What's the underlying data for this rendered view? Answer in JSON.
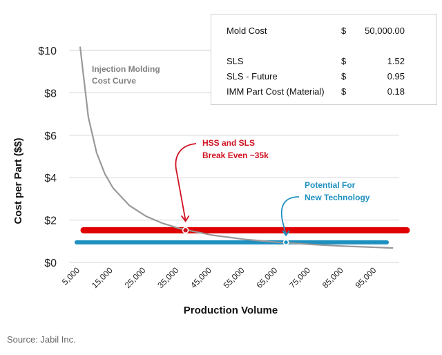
{
  "chart_data": {
    "type": "line",
    "xlabel": "Production Volume",
    "ylabel": "Cost per Part ($$)",
    "ylim": [
      0,
      10
    ],
    "yticks": [
      "$0",
      "$2",
      "$4",
      "$6",
      "$8",
      "$10"
    ],
    "ytick_values": [
      0,
      2,
      4,
      6,
      8,
      10
    ],
    "xticks": [
      "5,000",
      "15,000",
      "25,000",
      "35,000",
      "45,000",
      "55,000",
      "65,000",
      "75,000",
      "85,000",
      "95,000"
    ],
    "xtick_values": [
      5000,
      15000,
      25000,
      35000,
      45000,
      55000,
      65000,
      75000,
      85000,
      95000
    ],
    "grid": true,
    "series": [
      {
        "color": "#999999",
        "x": [
          5000,
          7500,
          10000,
          12500,
          15000,
          20000,
          25000,
          30000,
          35000,
          45000,
          55000,
          65000,
          75000,
          85000,
          95000,
          100000
        ],
        "y": [
          10.18,
          6.85,
          5.18,
          4.18,
          3.51,
          2.68,
          2.18,
          1.85,
          1.61,
          1.29,
          1.09,
          0.95,
          0.85,
          0.77,
          0.71,
          0.68
        ]
      },
      {
        "color": "#e00000",
        "y_constant": 1.52
      },
      {
        "color": "#1e90c0",
        "y_constant": 0.95
      }
    ],
    "annotations": [
      {
        "lines": [
          "Injection Molding",
          "Cost Curve"
        ],
        "color": "#808080"
      },
      {
        "lines": [
          "HSS and SLS",
          "Break Even ~35k"
        ],
        "color": "#d01020",
        "marker_x": 37000,
        "marker_y": 1.52
      },
      {
        "lines": [
          "Potential For",
          "New Technology"
        ],
        "color": "#1e90c0",
        "marker_x": 67500,
        "marker_y": 0.95
      }
    ]
  },
  "table": {
    "rows": [
      {
        "label": "Mold Cost",
        "currency": "$",
        "value": "50,000.00"
      },
      {
        "label": "SLS",
        "currency": "$",
        "value": "1.52"
      },
      {
        "label": "SLS - Future",
        "currency": "$",
        "value": "0.95"
      },
      {
        "label": "IMM Part Cost (Material)",
        "currency": "$",
        "value": "0.18"
      }
    ]
  },
  "source": "Source: Jabil Inc."
}
